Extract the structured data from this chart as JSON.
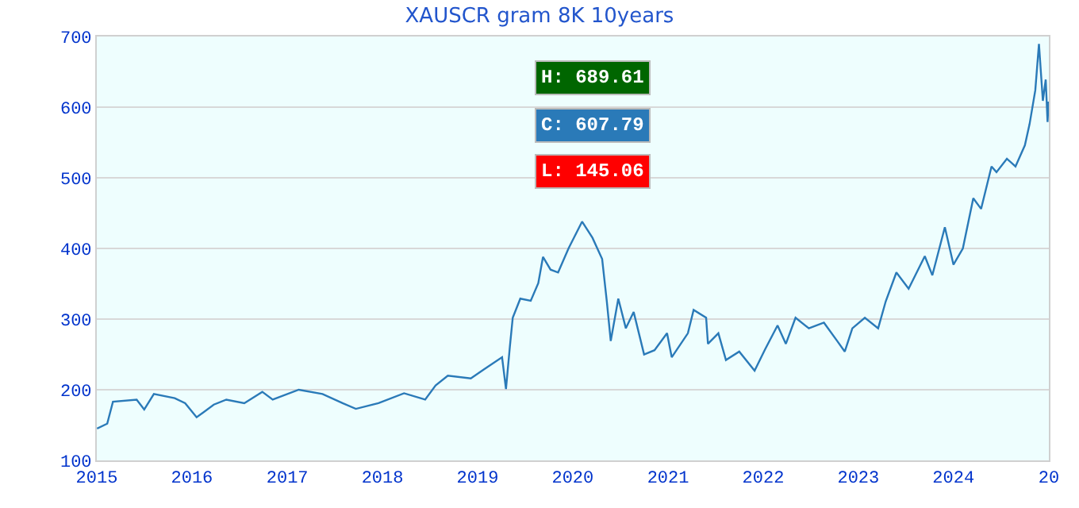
{
  "chart_data": {
    "type": "line",
    "title": "XAUSCR gram 8K 10years",
    "x": [
      "2015-01-02",
      "2015-02-10",
      "2015-03-04",
      "2015-06-03",
      "2015-07-02",
      "2015-08-08",
      "2015-10-27",
      "2015-12-06",
      "2016-01-19",
      "2016-03-25",
      "2016-05-12",
      "2016-07-20",
      "2016-09-27",
      "2016-11-06",
      "2017-02-14",
      "2017-05-16",
      "2017-08-01",
      "2017-09-21",
      "2017-12-17",
      "2018-03-25",
      "2018-06-14",
      "2018-07-24",
      "2018-09-09",
      "2018-12-06",
      "2019-01-26",
      "2019-04-05",
      "2019-04-20",
      "2019-05-05",
      "2019-05-16",
      "2019-06-14",
      "2019-07-24",
      "2019-08-22",
      "2019-09-09",
      "2019-10-08",
      "2019-11-06",
      "2019-12-16",
      "2020-02-06",
      "2020-03-17",
      "2020-04-23",
      "2020-05-11",
      "2020-05-26",
      "2020-06-24",
      "2020-07-23",
      "2020-08-22",
      "2020-10-01",
      "2020-11-10",
      "2020-12-28",
      "2021-01-15",
      "2021-03-18",
      "2021-04-09",
      "2021-05-27",
      "2021-06-03",
      "2021-07-13",
      "2021-08-11",
      "2021-10-01",
      "2021-11-29",
      "2022-01-08",
      "2022-02-25",
      "2022-03-29",
      "2022-05-05",
      "2022-06-25",
      "2022-08-22",
      "2022-10-12",
      "2022-11-10",
      "2022-12-09",
      "2023-01-26",
      "2023-03-18",
      "2023-04-16",
      "2023-05-27",
      "2023-07-13",
      "2023-09-13",
      "2023-10-12",
      "2023-11-29",
      "2024-01-01",
      "2024-02-06",
      "2024-03-17",
      "2024-04-16",
      "2024-05-26",
      "2024-06-14",
      "2024-07-24",
      "2024-08-26",
      "2024-10-01",
      "2024-10-19",
      "2024-11-10",
      "2024-11-24",
      "2024-12-09",
      "2024-12-20",
      "2024-12-27",
      "2024-12-31"
    ],
    "series": [
      {
        "color": "#2a7ab8",
        "values": [
          145.06,
          152,
          183,
          186,
          172,
          194,
          188,
          181,
          161,
          179,
          186,
          181,
          197,
          186,
          200,
          194,
          181,
          173,
          181,
          195,
          186,
          206,
          220,
          216,
          229,
          246,
          201,
          261,
          302,
          329,
          326,
          351,
          388,
          370,
          366,
          400,
          438,
          415,
          385,
          325,
          269,
          329,
          287,
          310,
          250,
          256,
          280,
          246,
          280,
          313,
          302,
          265,
          280,
          242,
          254,
          227,
          257,
          291,
          265,
          302,
          287,
          295,
          269,
          254,
          287,
          302,
          287,
          325,
          366,
          343,
          389,
          362,
          430,
          377,
          400,
          471,
          456,
          516,
          508,
          527,
          516,
          546,
          576,
          624,
          689.61,
          609,
          639,
          579,
          607.79
        ]
      }
    ],
    "annotations": [
      "H: 689.61",
      "C: 607.79",
      "L: 145.06"
    ],
    "xlim": [
      "2015-01-01",
      "2025-01-01"
    ],
    "xticks": [
      {
        "value": "2015-01-01",
        "label": "2015"
      },
      {
        "value": "2016-01-01",
        "label": "2016"
      },
      {
        "value": "2017-01-01",
        "label": "2017"
      },
      {
        "value": "2018-01-01",
        "label": "2018"
      },
      {
        "value": "2019-01-01",
        "label": "2019"
      },
      {
        "value": "2020-01-01",
        "label": "2020"
      },
      {
        "value": "2021-01-01",
        "label": "2021"
      },
      {
        "value": "2022-01-01",
        "label": "2022"
      },
      {
        "value": "2023-01-01",
        "label": "2023"
      },
      {
        "value": "2024-01-01",
        "label": "2024"
      },
      {
        "value": "2025-01-01",
        "label": "20"
      }
    ],
    "ylim": [
      100,
      700
    ],
    "yticks": [
      100,
      200,
      300,
      400,
      500,
      600,
      700
    ],
    "grid": "y",
    "marker": "none",
    "line_style": "solid"
  }
}
